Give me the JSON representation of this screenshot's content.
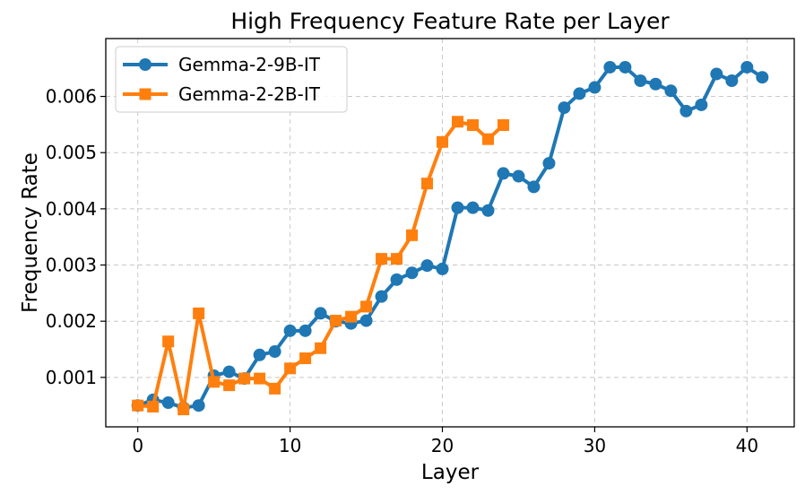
{
  "chart_data": {
    "type": "line",
    "title": "High Frequency Feature Rate per Layer",
    "xlabel": "Layer",
    "ylabel": "Frequency Rate",
    "xlim": [
      -2.1,
      43.1
    ],
    "ylim": [
      0.00012,
      0.00703
    ],
    "xticks": [
      0,
      10,
      20,
      30,
      40
    ],
    "xtick_labels": [
      "0",
      "10",
      "20",
      "30",
      "40"
    ],
    "yticks": [
      0.001,
      0.002,
      0.003,
      0.004,
      0.005,
      0.006
    ],
    "ytick_labels": [
      "0.001",
      "0.002",
      "0.003",
      "0.004",
      "0.005",
      "0.006"
    ],
    "grid": true,
    "legend_position": "top-left",
    "series": [
      {
        "name": "Gemma-2-9B-IT",
        "color": "#1f77b4",
        "marker": "circle",
        "x": [
          0,
          1,
          2,
          3,
          4,
          5,
          6,
          7,
          8,
          9,
          10,
          11,
          12,
          13,
          14,
          15,
          16,
          17,
          18,
          19,
          20,
          21,
          22,
          23,
          24,
          25,
          26,
          27,
          28,
          29,
          30,
          31,
          32,
          33,
          34,
          35,
          36,
          37,
          38,
          39,
          40,
          41
        ],
        "values": [
          0.0005,
          0.0006,
          0.00055,
          0.00046,
          0.0005,
          0.00103,
          0.0011,
          0.00098,
          0.0014,
          0.00146,
          0.00183,
          0.00183,
          0.00214,
          0.002,
          0.00196,
          0.00201,
          0.00244,
          0.00274,
          0.00286,
          0.00299,
          0.00293,
          0.00402,
          0.00402,
          0.00397,
          0.00463,
          0.00458,
          0.00439,
          0.00481,
          0.0058,
          0.00605,
          0.00616,
          0.00652,
          0.00652,
          0.00628,
          0.00622,
          0.0061,
          0.00574,
          0.00585,
          0.0064,
          0.00628,
          0.00652,
          0.00634
        ]
      },
      {
        "name": "Gemma-2-2B-IT",
        "color": "#ff7f0e",
        "marker": "square",
        "x": [
          0,
          1,
          2,
          3,
          4,
          5,
          6,
          7,
          8,
          9,
          10,
          11,
          12,
          13,
          14,
          15,
          16,
          17,
          18,
          19,
          20,
          21,
          22,
          23,
          24
        ],
        "values": [
          0.0005,
          0.00048,
          0.00164,
          0.00043,
          0.00214,
          0.00092,
          0.00086,
          0.00098,
          0.00098,
          0.0008,
          0.00116,
          0.00134,
          0.00152,
          0.00201,
          0.00208,
          0.00226,
          0.00311,
          0.00311,
          0.00353,
          0.00445,
          0.00519,
          0.00555,
          0.00549,
          0.00524,
          0.00549
        ]
      }
    ]
  }
}
